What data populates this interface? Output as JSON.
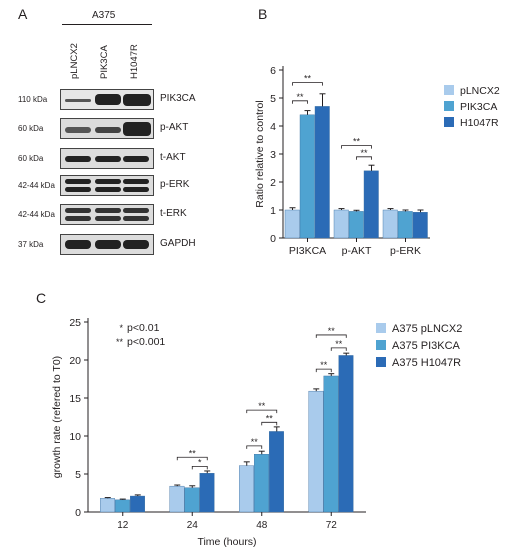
{
  "panel_letters": [
    "A",
    "B",
    "C"
  ],
  "western_blot": {
    "cell_line": "A375",
    "lanes": [
      "pLNCX2",
      "PIK3CA",
      "H1047R"
    ],
    "rows": [
      {
        "kda": "110 kDa",
        "protein": "PIK3CA"
      },
      {
        "kda": "60 kDa",
        "protein": "p-AKT"
      },
      {
        "kda": "60 kDa",
        "protein": "t-AKT"
      },
      {
        "kda": "42-44 kDa",
        "protein": "p-ERK"
      },
      {
        "kda": "42-44 kDa",
        "protein": "t-ERK"
      },
      {
        "kda": "37 kDa",
        "protein": "GAPDH"
      }
    ]
  },
  "chart_data": [
    {
      "type": "bar",
      "panel": "B",
      "categories": [
        "PI3KCA",
        "p-AKT",
        "p-ERK"
      ],
      "ylabel": "Ratio relative to control",
      "ylim": [
        0,
        6
      ],
      "yticks": [
        "0",
        "1",
        "2",
        "3",
        "4",
        "5",
        "6"
      ],
      "series": [
        {
          "name": "pLNCX2",
          "color": "#a9cbec",
          "values": [
            1.0,
            1.0,
            1.0
          ],
          "errors": [
            0.08,
            0.05,
            0.05
          ]
        },
        {
          "name": "PIK3CA",
          "color": "#4fa3d1",
          "values": [
            4.4,
            0.95,
            0.95
          ],
          "errors": [
            0.15,
            0.04,
            0.05
          ]
        },
        {
          "name": "H1047R",
          "color": "#2b6bb6",
          "values": [
            4.7,
            2.4,
            0.92
          ],
          "errors": [
            0.45,
            0.2,
            0.08
          ]
        }
      ],
      "significance": [
        "**",
        "**",
        "**",
        "**"
      ],
      "legend_position": "right"
    },
    {
      "type": "bar",
      "panel": "C",
      "categories": [
        "12",
        "24",
        "48",
        "72"
      ],
      "xlabel": "Time (hours)",
      "ylabel": "growth rate (refered to T0)",
      "ylim": [
        0,
        25
      ],
      "yticks": [
        "0",
        "5",
        "10",
        "15",
        "20",
        "25"
      ],
      "series": [
        {
          "name": "A375 pLNCX2",
          "color": "#a9cbec",
          "values": [
            1.8,
            3.4,
            6.1,
            15.9
          ],
          "errors": [
            0.1,
            0.15,
            0.5,
            0.3
          ]
        },
        {
          "name": "A375 PI3KCA",
          "color": "#4fa3d1",
          "values": [
            1.6,
            3.2,
            7.6,
            17.9
          ],
          "errors": [
            0.1,
            0.25,
            0.4,
            0.3
          ]
        },
        {
          "name": "A375 H1047R",
          "color": "#2b6bb6",
          "values": [
            2.1,
            5.1,
            10.6,
            20.6
          ],
          "errors": [
            0.15,
            0.3,
            0.6,
            0.3
          ]
        }
      ],
      "significance_legend": [
        {
          "symbol": "*",
          "text": "p<0.01"
        },
        {
          "symbol": "**",
          "text": "p<0.001"
        }
      ],
      "legend_position": "top-right"
    }
  ]
}
